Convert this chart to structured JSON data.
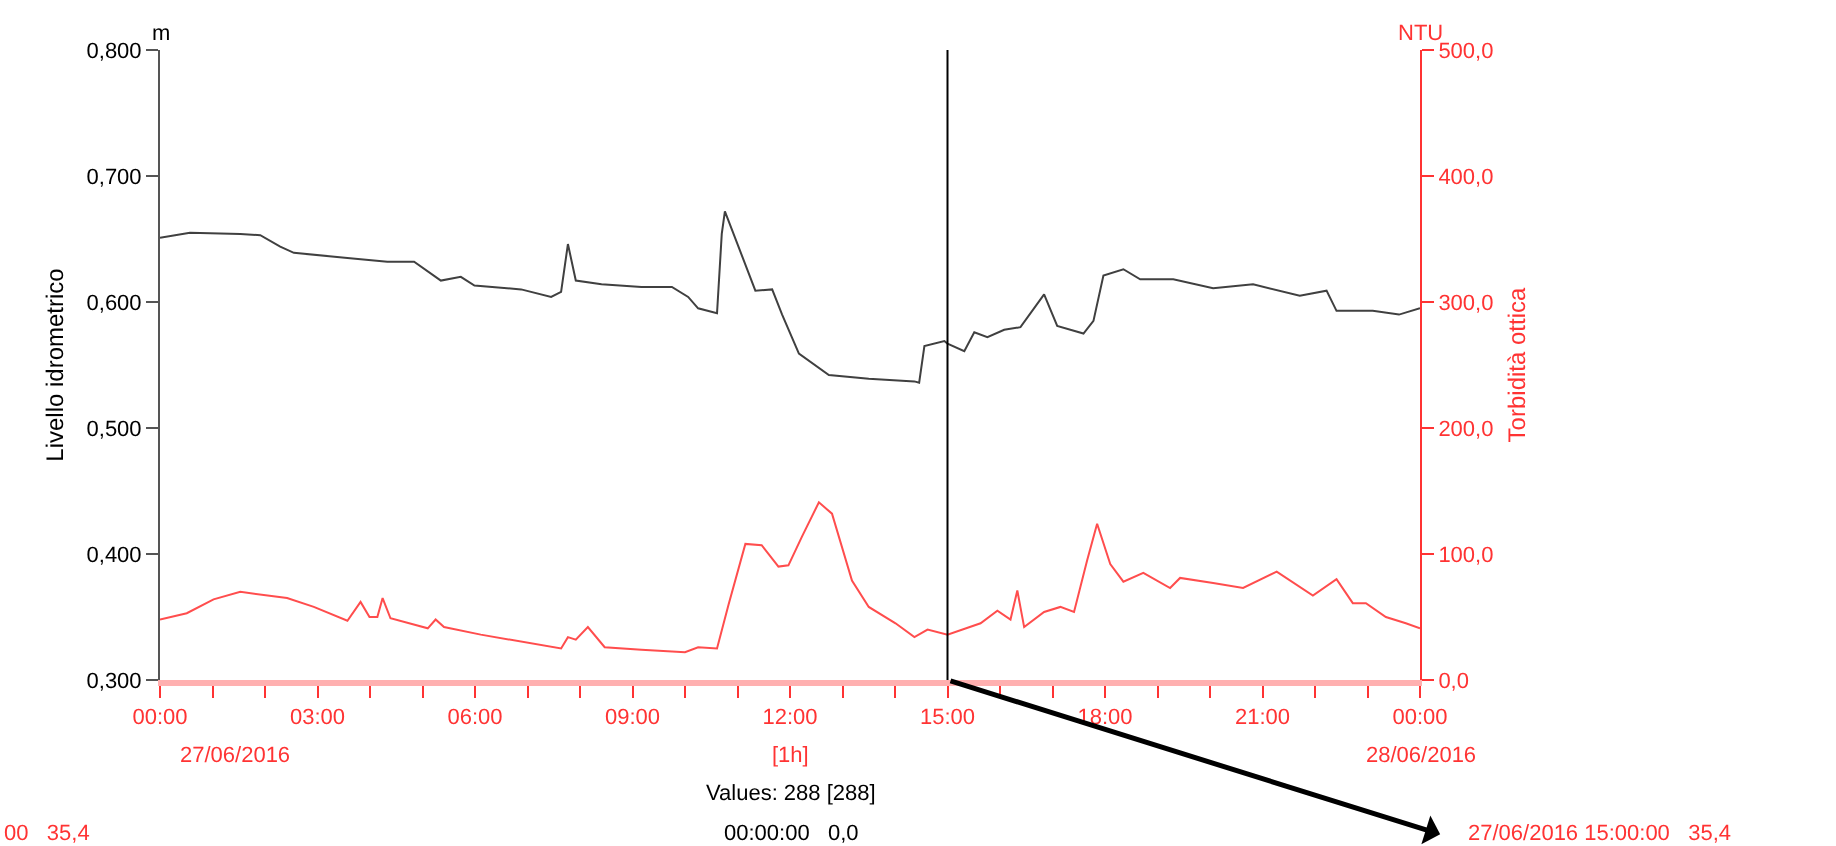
{
  "chart_data": {
    "type": "line",
    "ylabel": "Livello idrometrico",
    "y2label": "Torbidità ottica",
    "xlim": [
      0,
      24
    ],
    "xticks": [
      {
        "value": 0,
        "label": "00:00"
      },
      {
        "value": 1,
        "label": null
      },
      {
        "value": 2,
        "label": null
      },
      {
        "value": 3,
        "label": "03:00"
      },
      {
        "value": 4,
        "label": null
      },
      {
        "value": 5,
        "label": null
      },
      {
        "value": 6,
        "label": "06:00"
      },
      {
        "value": 7,
        "label": null
      },
      {
        "value": 8,
        "label": null
      },
      {
        "value": 9,
        "label": "09:00"
      },
      {
        "value": 10,
        "label": null
      },
      {
        "value": 11,
        "label": null
      },
      {
        "value": 12,
        "label": "12:00"
      },
      {
        "value": 13,
        "label": null
      },
      {
        "value": 14,
        "label": null
      },
      {
        "value": 15,
        "label": "15:00"
      },
      {
        "value": 16,
        "label": null
      },
      {
        "value": 17,
        "label": null
      },
      {
        "value": 18,
        "label": "18:00"
      },
      {
        "value": 19,
        "label": null
      },
      {
        "value": 20,
        "label": null
      },
      {
        "value": 21,
        "label": "21:00"
      },
      {
        "value": 22,
        "label": null
      },
      {
        "value": 23,
        "label": null
      },
      {
        "value": 24,
        "label": "00:00"
      }
    ],
    "ylim": [
      0.3,
      0.8
    ],
    "yticks": [
      {
        "value": 0.3,
        "label": "0,300"
      },
      {
        "value": 0.4,
        "label": "0,400"
      },
      {
        "value": 0.5,
        "label": "0,500"
      },
      {
        "value": 0.6,
        "label": "0,600"
      },
      {
        "value": 0.7,
        "label": "0,700"
      },
      {
        "value": 0.8,
        "label": "0,800"
      }
    ],
    "y2lim": [
      0,
      500
    ],
    "y2ticks": [
      {
        "value": 0,
        "label": "0,0"
      },
      {
        "value": 100,
        "label": "100,0"
      },
      {
        "value": 200,
        "label": "200,0"
      },
      {
        "value": 300,
        "label": "300,0"
      },
      {
        "value": 400,
        "label": "400,0"
      },
      {
        "value": 500,
        "label": "500,0"
      }
    ],
    "series": [
      {
        "color": "#404040",
        "x": [
          0,
          0.57,
          1.53,
          1.91,
          2.29,
          2.55,
          3.57,
          4.33,
          4.84,
          5.35,
          5.73,
          5.99,
          6.88,
          7.45,
          7.64,
          7.77,
          7.92,
          8.41,
          9.17,
          9.75,
          10.06,
          10.25,
          10.61,
          10.7,
          10.76,
          11.34,
          11.66,
          11.85,
          12.17,
          12.74,
          13.5,
          14.37,
          14.46,
          14.56,
          14.94,
          15,
          15.32,
          15.51,
          15.76,
          16.08,
          16.39,
          16.84,
          17.09,
          17.59,
          17.78,
          17.97,
          18.35,
          18.67,
          19.3,
          20.06,
          20.82,
          21.71,
          22.22,
          22.41,
          23.1,
          23.6,
          24
        ],
        "values": [
          0.651,
          0.655,
          0.654,
          0.653,
          0.644,
          0.639,
          0.635,
          0.632,
          0.632,
          0.617,
          0.62,
          0.613,
          0.61,
          0.604,
          0.608,
          0.646,
          0.617,
          0.614,
          0.612,
          0.612,
          0.604,
          0.595,
          0.591,
          0.654,
          0.672,
          0.609,
          0.61,
          0.59,
          0.559,
          0.542,
          0.539,
          0.537,
          0.536,
          0.565,
          0.569,
          0.567,
          0.561,
          0.576,
          0.572,
          0.578,
          0.58,
          0.606,
          0.581,
          0.575,
          0.585,
          0.621,
          0.626,
          0.618,
          0.618,
          0.611,
          0.614,
          0.605,
          0.609,
          0.593,
          0.593,
          0.59,
          0.595
        ]
      },
      {
        "color": "#ff4d4d",
        "axis": "y2",
        "x": [
          0,
          0.51,
          1.02,
          1.53,
          2.42,
          2.93,
          3.57,
          3.82,
          3.99,
          4.14,
          4.24,
          4.39,
          5.1,
          5.25,
          5.41,
          6.11,
          7.64,
          7.77,
          7.92,
          8.15,
          8.47,
          9.17,
          10,
          10.25,
          10.61,
          10.83,
          11.15,
          11.46,
          11.78,
          11.97,
          12.23,
          12.55,
          12.8,
          13.18,
          13.5,
          14.01,
          14.37,
          14.62,
          15,
          15.63,
          15.95,
          16.2,
          16.33,
          16.46,
          16.84,
          17.15,
          17.41,
          17.66,
          17.85,
          18.1,
          18.35,
          18.73,
          19.24,
          19.43,
          20.06,
          20.63,
          21.27,
          21.96,
          22.41,
          22.72,
          22.97,
          23.35,
          23.73,
          24
        ],
        "values": [
          48,
          53,
          64,
          70,
          65,
          58,
          47,
          62,
          50,
          50,
          65,
          49,
          41,
          48,
          42,
          36,
          25,
          34,
          32,
          42,
          26,
          24,
          22,
          26,
          25,
          60,
          108,
          107,
          90,
          91,
          114,
          141,
          132,
          79,
          58,
          45,
          34,
          40,
          36,
          45,
          55,
          48,
          71,
          42,
          54,
          58,
          54,
          95,
          124,
          92,
          78,
          85,
          73,
          81,
          77,
          73,
          86,
          67,
          80,
          61,
          61,
          50,
          45,
          41
        ]
      }
    ],
    "ref_lines": [
      {
        "axis": "x",
        "value": 15,
        "color": "#000000"
      }
    ],
    "annotations": [
      "m",
      "NTU",
      "27/06/2016",
      "[1h]",
      "28/06/2016",
      "Values: 288 [288]",
      "00:00:00   0,0",
      "00   35,4",
      {
        "text": "27/06/2016 15:00:00   35,4",
        "x": 15,
        "y": 0.3
      }
    ]
  }
}
